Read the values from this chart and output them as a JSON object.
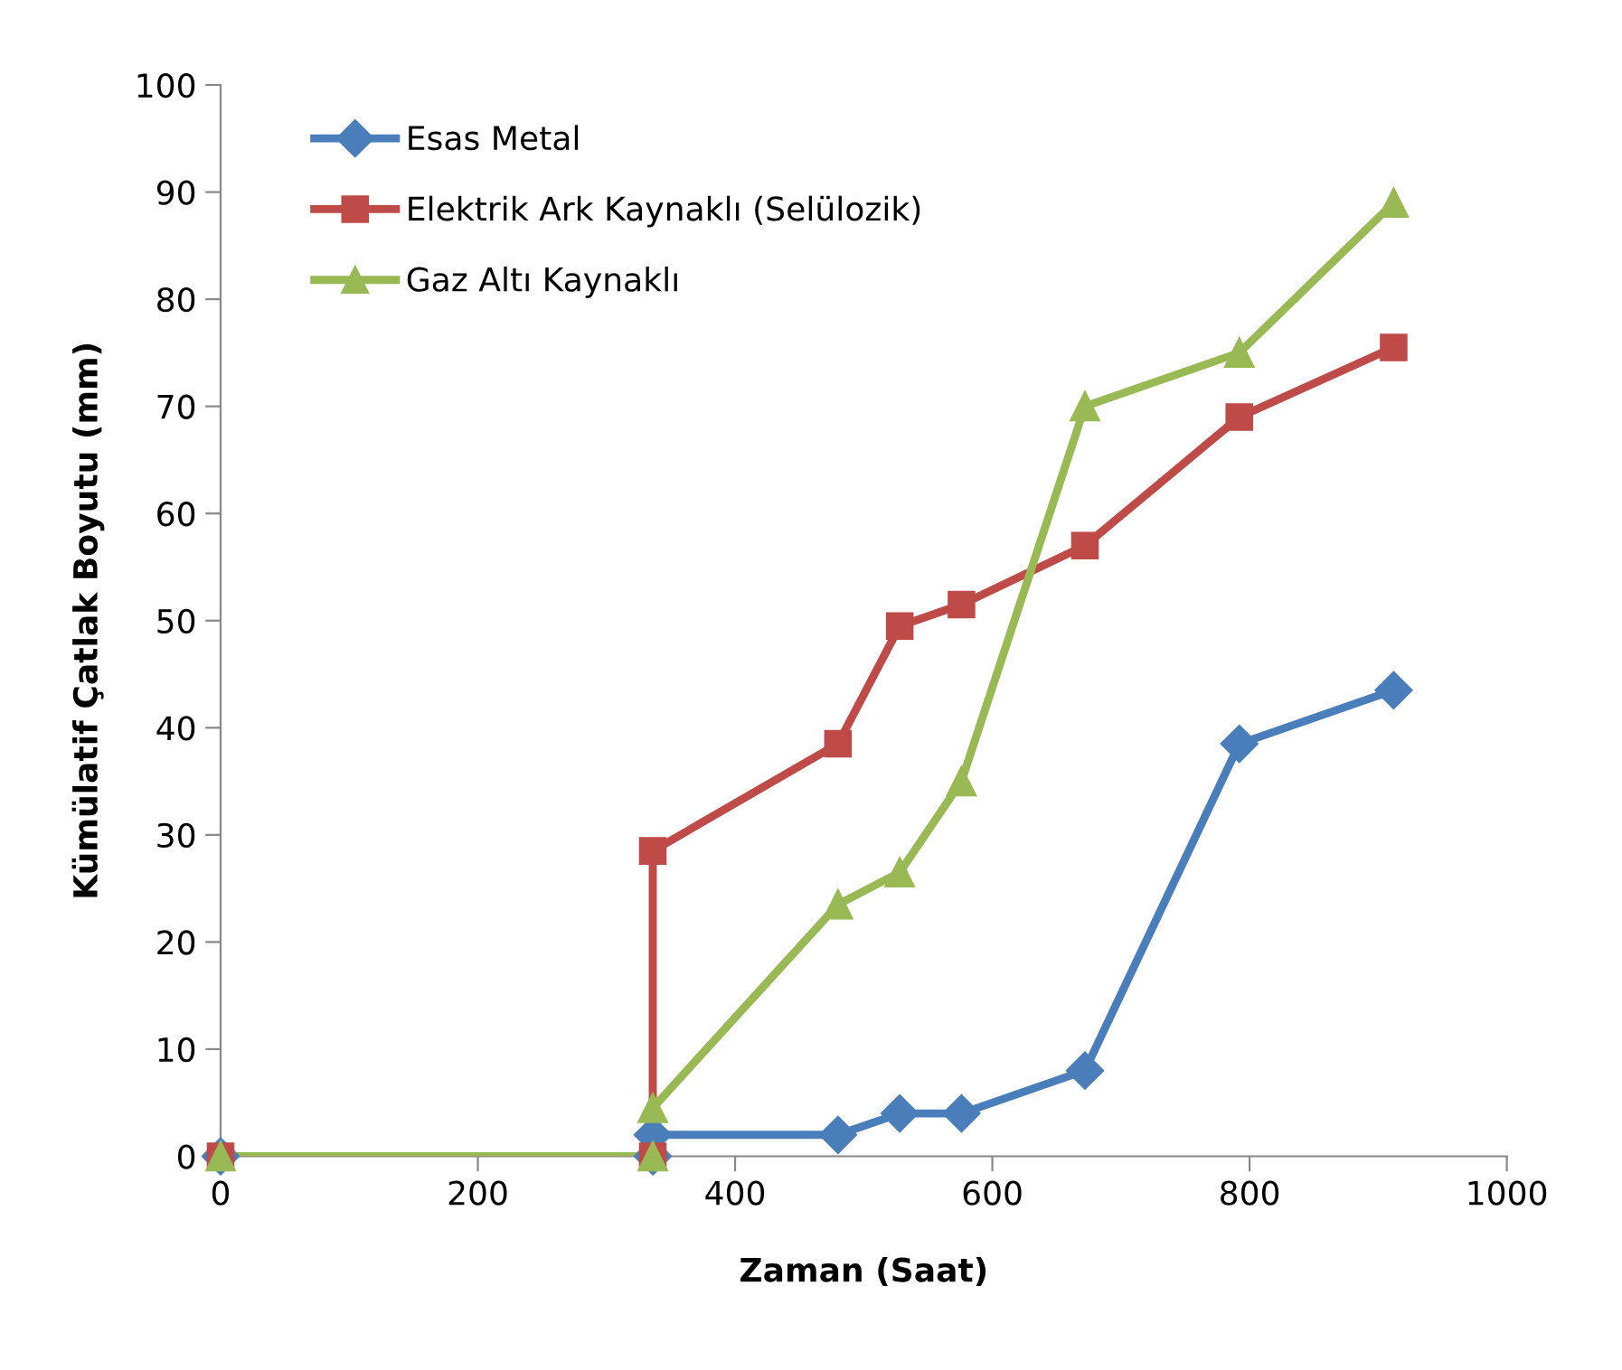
{
  "chart_data": {
    "type": "line",
    "xlabel": "Zaman (Saat)",
    "ylabel": "Kümülatif Çatlak Boyutu (mm)",
    "xlim": [
      0,
      1000
    ],
    "xticks": [
      0,
      200,
      400,
      600,
      800,
      1000
    ],
    "ylim": [
      0,
      100
    ],
    "yticks": [
      0,
      10,
      20,
      30,
      40,
      50,
      60,
      70,
      80,
      90,
      100
    ],
    "grid": false,
    "legend": "top left",
    "line_style": "solid",
    "series": [
      {
        "name": "Esas Metal",
        "color": "#4a7ebb",
        "marker": "diamond",
        "x": [
          0,
          336,
          336,
          480,
          528,
          576,
          672,
          792,
          912
        ],
        "values": [
          0,
          0,
          2,
          2,
          4,
          4,
          8,
          38.5,
          43.5
        ]
      },
      {
        "name": "Elektrik Ark Kaynaklı (Selülozik)",
        "color": "#be4b48",
        "marker": "square",
        "x": [
          0,
          336,
          336,
          480,
          528,
          576,
          672,
          792,
          912
        ],
        "values": [
          0,
          0,
          28.5,
          38.5,
          49.5,
          51.5,
          57,
          69,
          75.5
        ]
      },
      {
        "name": "Gaz Altı Kaynaklı",
        "color": "#98b954",
        "marker": "triangle",
        "x": [
          0,
          336,
          336,
          480,
          528,
          576,
          672,
          792,
          912
        ],
        "values": [
          0,
          0,
          4.5,
          23.5,
          26.5,
          35,
          70,
          75,
          89
        ]
      }
    ]
  }
}
